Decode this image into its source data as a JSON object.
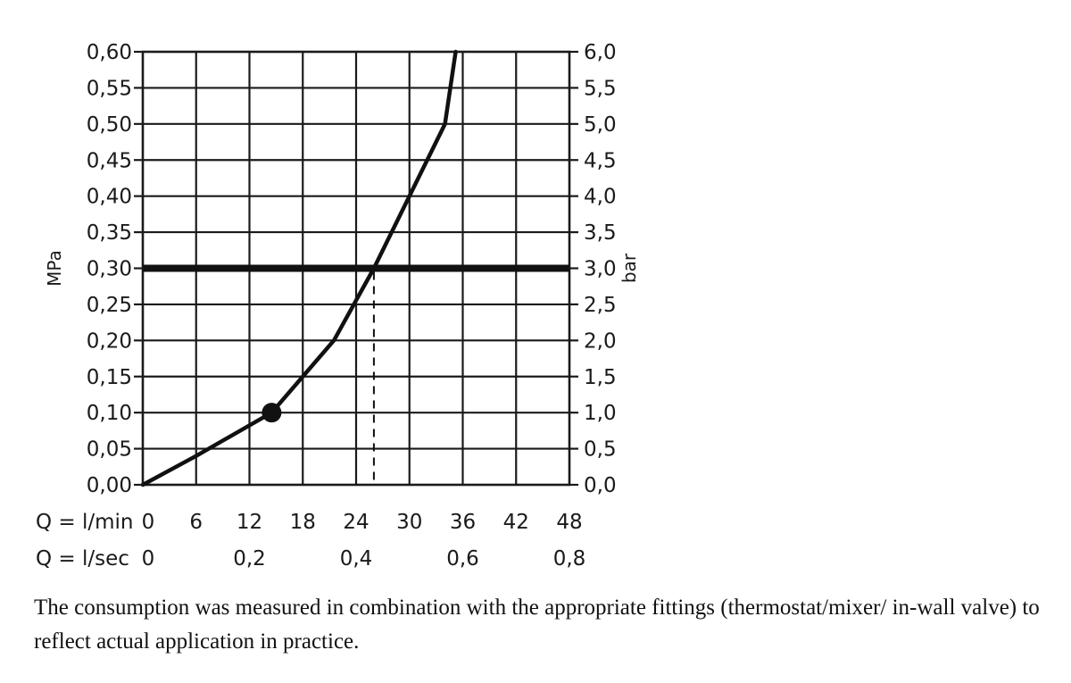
{
  "chart_data": {
    "type": "line",
    "x_axis": {
      "rows": [
        {
          "label": "Q = l/min",
          "values": [
            "0",
            "6",
            "12",
            "18",
            "24",
            "30",
            "36",
            "42",
            "48"
          ],
          "units_per_tick": 6
        },
        {
          "label": "Q = l/sec",
          "values": [
            "0",
            "0,2",
            "0,4",
            "0,6",
            "0,8"
          ],
          "units_per_tick": 12
        }
      ],
      "xlim": [
        0,
        48
      ]
    },
    "y_axis_left": {
      "label": "MPa",
      "ticks": [
        "0,00",
        "0,05",
        "0,10",
        "0,15",
        "0,20",
        "0,25",
        "0,30",
        "0,35",
        "0,40",
        "0,45",
        "0,50",
        "0,55",
        "0,60"
      ],
      "ylim": [
        0,
        0.6
      ]
    },
    "y_axis_right": {
      "label": "bar",
      "ticks": [
        "0,0",
        "0,5",
        "1,0",
        "1,5",
        "2,0",
        "2,5",
        "3,0",
        "3,5",
        "4,0",
        "4,5",
        "5,0",
        "5,5",
        "6,0"
      ],
      "ylim": [
        0,
        6
      ]
    },
    "grid": true,
    "series": [
      {
        "x": [
          0,
          6,
          14.5,
          18,
          21.5,
          26,
          30,
          34,
          35.2
        ],
        "y": [
          0,
          0.04,
          0.1,
          0.15,
          0.2,
          0.3,
          0.4,
          0.5,
          0.6
        ]
      }
    ],
    "marker": {
      "x": 14.5,
      "y": 0.1
    },
    "reference_line": {
      "y": 0.3
    },
    "reference_drop": {
      "x": 26,
      "y": 0.3
    }
  },
  "caption": "The consumption was measured in combination with the appropriate fittings (thermostat/mixer/ in-wall valve) to reflect actual application in practice."
}
